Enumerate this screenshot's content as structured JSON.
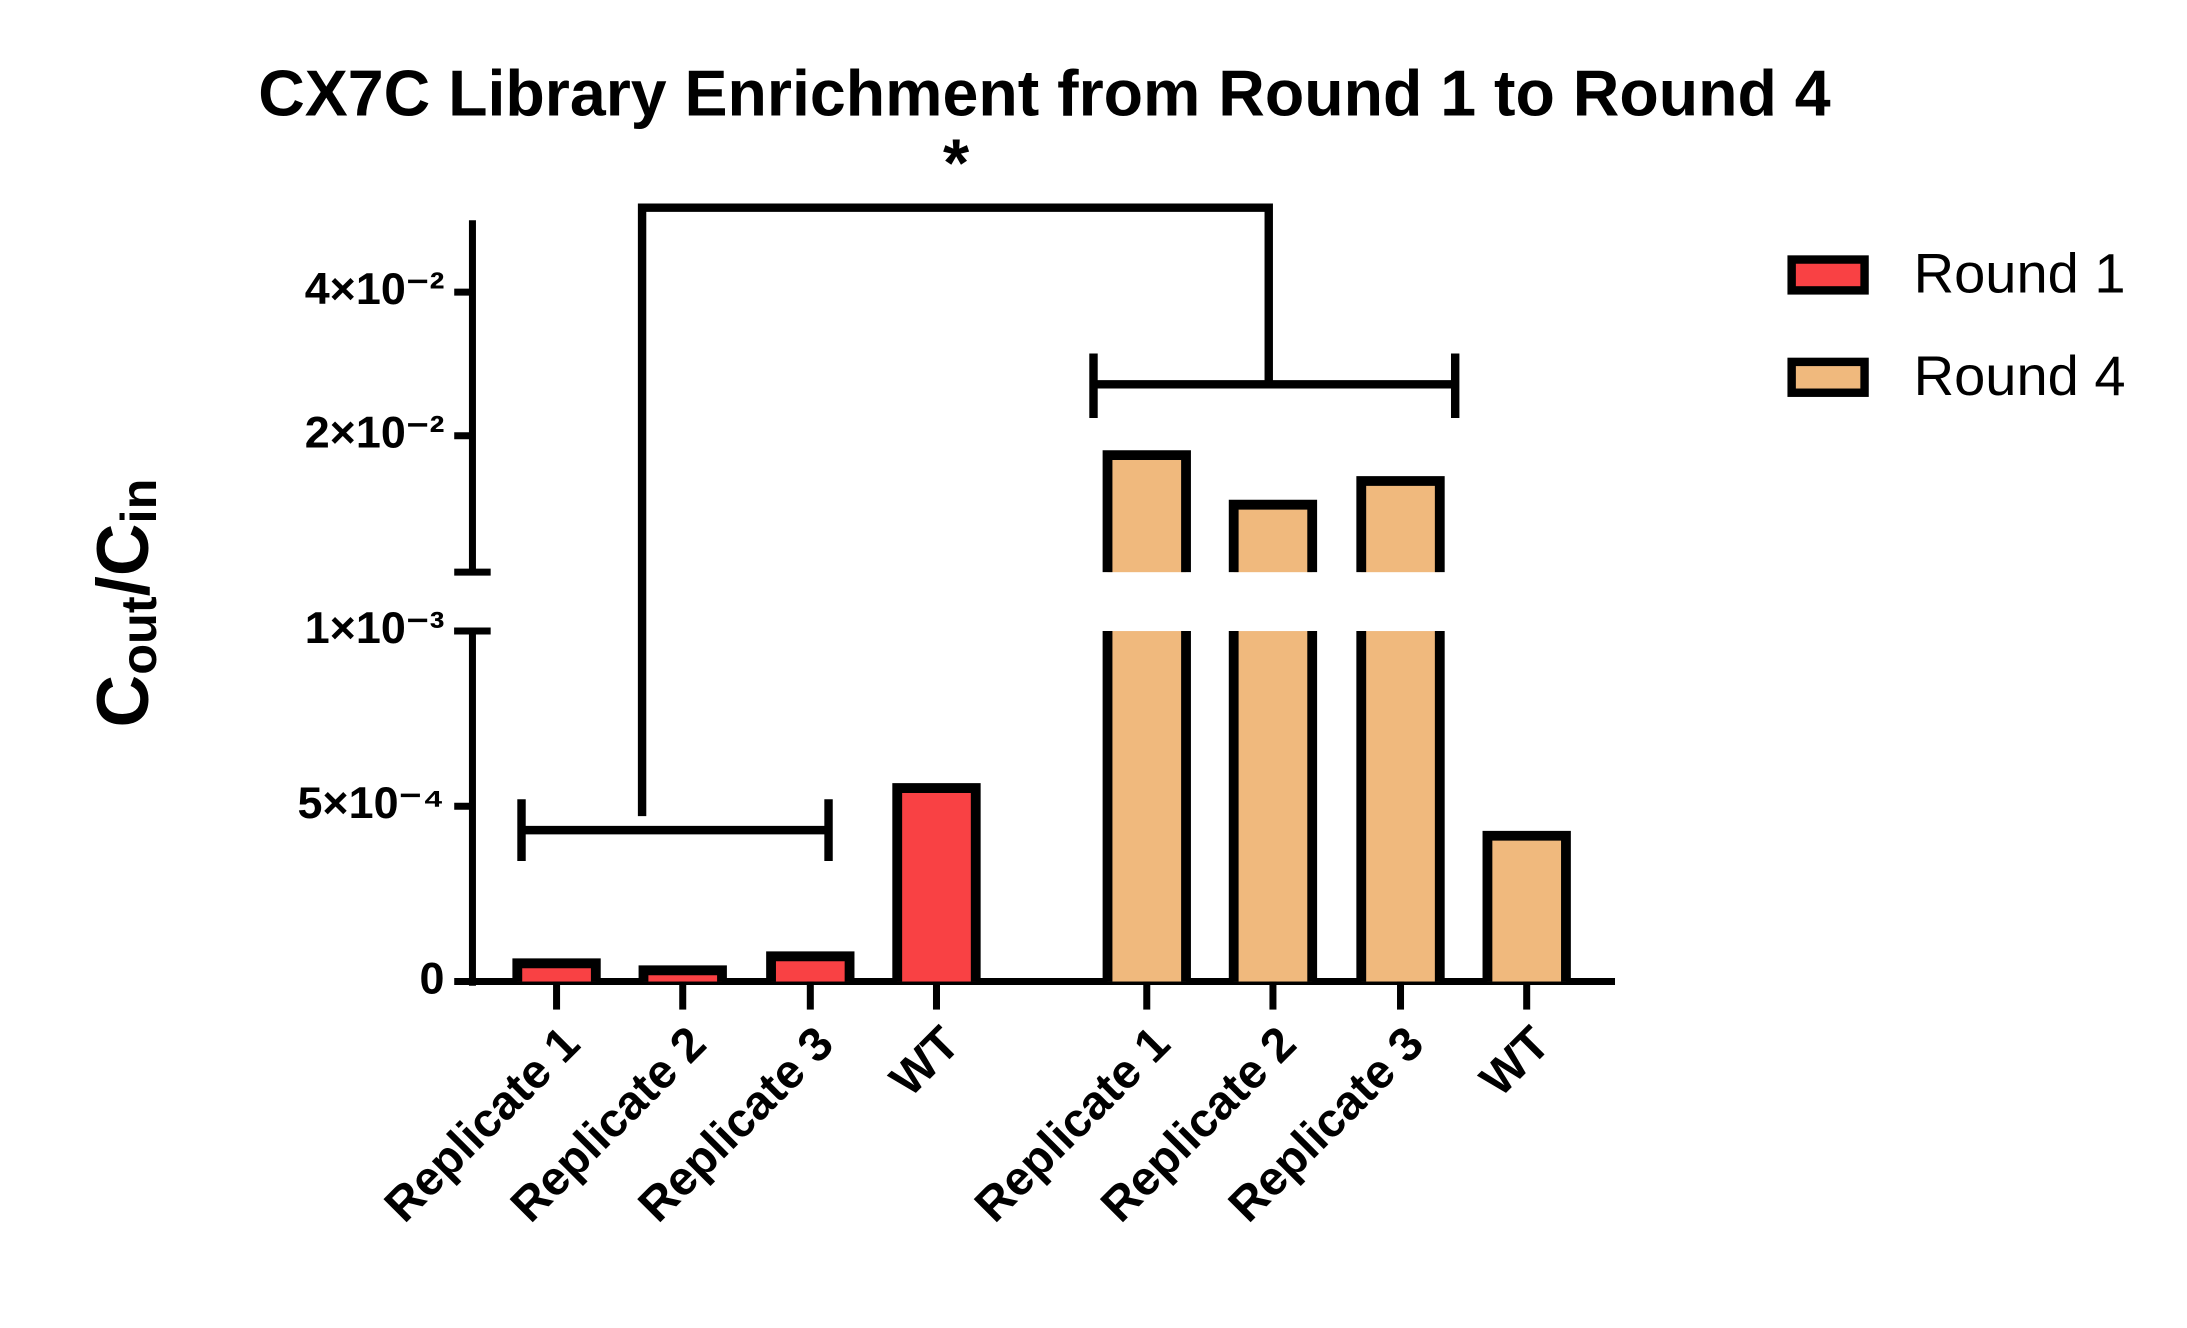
{
  "chart_data": {
    "type": "bar",
    "title": "CX7C Library Enrichment from Round 1 to Round 4",
    "ylabel": [
      "C",
      "out",
      "/",
      "C",
      "in"
    ],
    "annotation": "*",
    "ysegments": [
      {
        "ylim": [
          0,
          0.001
        ],
        "yticks": [
          0,
          {
            "value": 0.0005,
            "label": "5×10⁻⁴"
          },
          {
            "value": 0.001,
            "label": "1×10⁻³"
          }
        ]
      },
      {
        "ylim": [
          0.001,
          0.05
        ],
        "yticks": [
          {
            "value": 0.02,
            "label": "2×10⁻²"
          },
          {
            "value": 0.04,
            "label": "4×10⁻²"
          }
        ]
      }
    ],
    "series": [
      {
        "name": "Round 1",
        "color": "#f94144",
        "categories": [
          "Replicate 1",
          "Replicate 2",
          "Replicate 3",
          "WT"
        ],
        "values": [
          5.2e-05,
          3.2e-05,
          7.2e-05,
          0.000552
        ]
      },
      {
        "name": "Round 4",
        "color": "#f0b97d",
        "categories": [
          "Replicate 1",
          "Replicate 2",
          "Replicate 3",
          "WT"
        ],
        "values": [
          0.0173,
          0.0104,
          0.0137,
          0.000416
        ]
      }
    ]
  }
}
